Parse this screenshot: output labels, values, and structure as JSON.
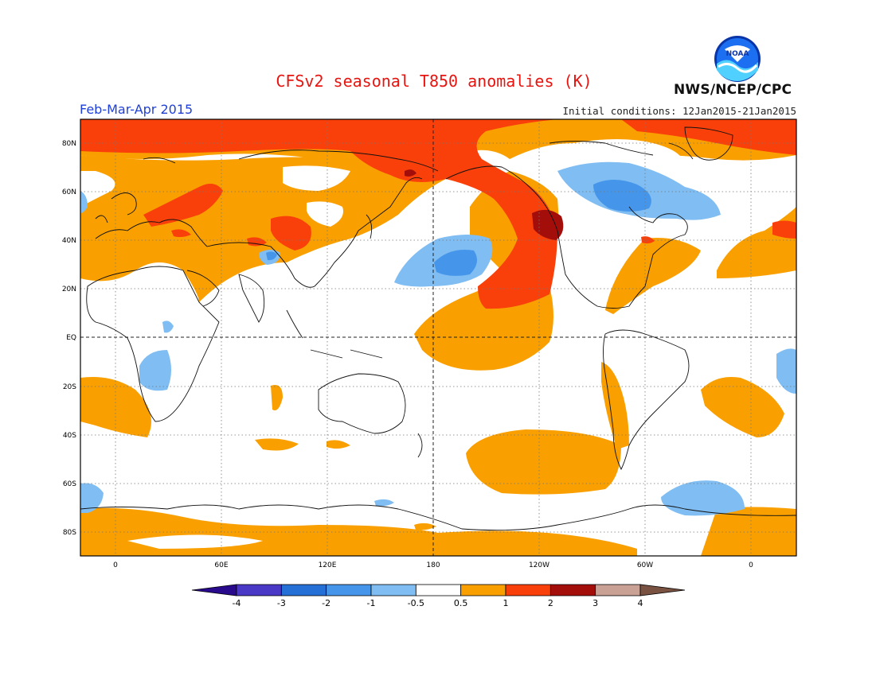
{
  "title": "CFSv2 seasonal T850 anomalies (K)",
  "period": "Feb-Mar-Apr 2015",
  "initial_conditions": "Initial conditions: 12Jan2015-21Jan2015",
  "agency": "NWS/NCEP/CPC",
  "logo_text": "NOAA",
  "map": {
    "projection": "cylindrical equidistant",
    "lon_range": [
      -20,
      380
    ],
    "lat_range": [
      -90,
      90
    ],
    "lat_labels": [
      "80N",
      "60N",
      "40N",
      "20N",
      "EQ",
      "20S",
      "40S",
      "60S",
      "80S"
    ],
    "lon_labels": [
      "0",
      "60E",
      "120E",
      "180",
      "120W",
      "60W",
      "0"
    ],
    "gridlines": "dotted",
    "equator_and_dateline": "dashed"
  },
  "legend": {
    "labels": [
      "-4",
      "-3",
      "-2",
      "-1",
      "-0.5",
      "0.5",
      "1",
      "2",
      "3",
      "4"
    ],
    "colors": [
      "#2a0a8c",
      "#4a39c7",
      "#2470d6",
      "#4596ea",
      "#7fbdf2",
      "#ffffff",
      "#f9a000",
      "#f9400a",
      "#a30e0b",
      "#c9a195",
      "#7a5242"
    ],
    "extend": "both"
  }
}
